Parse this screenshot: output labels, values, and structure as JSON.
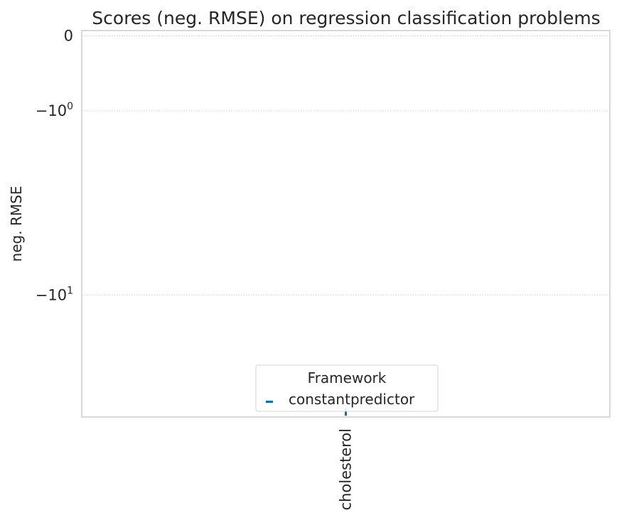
{
  "chart_data": {
    "type": "scatter",
    "title": "Scores (neg. RMSE) on  regression classification problems",
    "xlabel": "",
    "ylabel": "neg. RMSE",
    "yscale": "symlog",
    "ylim": [
      -33,
      0.05
    ],
    "yticks": [
      {
        "value": 0,
        "base": "0",
        "exp": ""
      },
      {
        "value": -1,
        "base": "−10",
        "exp": "0"
      },
      {
        "value": -10,
        "base": "−10",
        "exp": "1"
      }
    ],
    "categories": [
      "cholesterol"
    ],
    "series": [
      {
        "name": "constantpredictor",
        "color": "#0173b2",
        "values": [
          -31.5
        ]
      }
    ],
    "grid": true,
    "legend": {
      "title": "Framework",
      "placement": "lower-center"
    }
  }
}
